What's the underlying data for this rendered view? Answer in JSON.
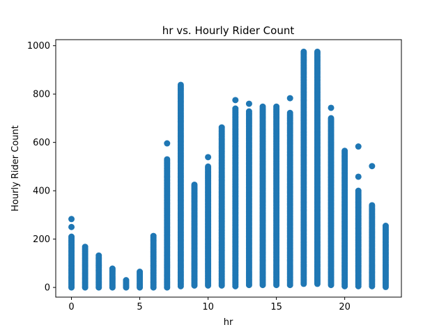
{
  "chart_data": {
    "type": "scatter",
    "title": "hr vs. Hourly Rider Count",
    "xlabel": "hr",
    "ylabel": "Hourly Rider Count",
    "xlim": [
      -1.15,
      24.15
    ],
    "ylim": [
      -40,
      1025
    ],
    "xticks": [
      0,
      5,
      10,
      15,
      20
    ],
    "yticks": [
      0,
      200,
      400,
      600,
      800,
      1000
    ],
    "grid": false,
    "legend": "none",
    "marker_color": "#1f77b4",
    "per_hour_range": [
      {
        "hr": 0,
        "min": 0,
        "max": 210,
        "outliers": [
          250,
          283
        ]
      },
      {
        "hr": 1,
        "min": 0,
        "max": 168,
        "outliers": []
      },
      {
        "hr": 2,
        "min": 0,
        "max": 132,
        "outliers": []
      },
      {
        "hr": 3,
        "min": 0,
        "max": 78,
        "outliers": []
      },
      {
        "hr": 4,
        "min": 0,
        "max": 30,
        "outliers": []
      },
      {
        "hr": 5,
        "min": 0,
        "max": 65,
        "outliers": []
      },
      {
        "hr": 6,
        "min": 0,
        "max": 213,
        "outliers": []
      },
      {
        "hr": 7,
        "min": 0,
        "max": 530,
        "outliers": [
          596
        ]
      },
      {
        "hr": 8,
        "min": 5,
        "max": 838,
        "outliers": []
      },
      {
        "hr": 9,
        "min": 8,
        "max": 425,
        "outliers": []
      },
      {
        "hr": 10,
        "min": 8,
        "max": 500,
        "outliers": [
          539
        ]
      },
      {
        "hr": 11,
        "min": 8,
        "max": 662,
        "outliers": []
      },
      {
        "hr": 12,
        "min": 5,
        "max": 740,
        "outliers": [
          775
        ]
      },
      {
        "hr": 13,
        "min": 10,
        "max": 728,
        "outliers": [
          760
        ]
      },
      {
        "hr": 14,
        "min": 10,
        "max": 748,
        "outliers": []
      },
      {
        "hr": 15,
        "min": 10,
        "max": 748,
        "outliers": []
      },
      {
        "hr": 16,
        "min": 10,
        "max": 722,
        "outliers": [
          783
        ]
      },
      {
        "hr": 17,
        "min": 15,
        "max": 975,
        "outliers": []
      },
      {
        "hr": 18,
        "min": 15,
        "max": 975,
        "outliers": []
      },
      {
        "hr": 19,
        "min": 10,
        "max": 700,
        "outliers": [
          743
        ]
      },
      {
        "hr": 20,
        "min": 5,
        "max": 565,
        "outliers": []
      },
      {
        "hr": 21,
        "min": 5,
        "max": 400,
        "outliers": [
          458,
          583
        ]
      },
      {
        "hr": 22,
        "min": 5,
        "max": 340,
        "outliers": [
          502
        ]
      },
      {
        "hr": 23,
        "min": 2,
        "max": 255,
        "outliers": []
      }
    ]
  }
}
